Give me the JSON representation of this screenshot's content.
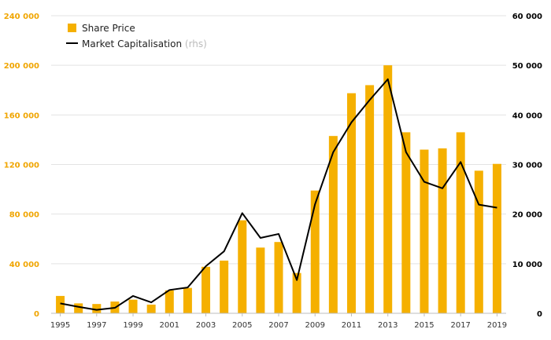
{
  "chart_data": {
    "type": "bar",
    "categories": [
      "1995",
      "1996",
      "1997",
      "1998",
      "1999",
      "2000",
      "2001",
      "2002",
      "2003",
      "2004",
      "2005",
      "2006",
      "2007",
      "2008",
      "2009",
      "2010",
      "2011",
      "2012",
      "2013",
      "2014",
      "2015",
      "2016",
      "2017",
      "2018",
      "2019"
    ],
    "x_tick_labels": [
      "1995",
      "1997",
      "1999",
      "2001",
      "2003",
      "2005",
      "2007",
      "2009",
      "2011",
      "2013",
      "2015",
      "2017",
      "2019"
    ],
    "series": [
      {
        "name": "Share Price",
        "type": "bar",
        "axis": "left",
        "color": "#f5b000",
        "values": [
          14000,
          8000,
          7500,
          9500,
          11000,
          7000,
          18500,
          20500,
          37500,
          42500,
          75000,
          53000,
          57500,
          32500,
          99000,
          143000,
          177500,
          184000,
          200000,
          146000,
          132000,
          133000,
          146000,
          115000,
          120500
        ]
      },
      {
        "name": "Market Capitalisation",
        "name_suffix": "(rhs)",
        "type": "line",
        "axis": "right",
        "color": "#000000",
        "values": [
          2000,
          1300,
          700,
          1100,
          3500,
          2200,
          4700,
          5200,
          9500,
          12500,
          20200,
          15200,
          16000,
          6700,
          22000,
          32500,
          38500,
          43000,
          47200,
          32500,
          26500,
          25200,
          30500,
          21900,
          21300
        ]
      }
    ],
    "y_left": {
      "min": 0,
      "max": 240000,
      "ticks": [
        "0",
        "40 000",
        "80 000",
        "120 000",
        "160 000",
        "200 000",
        "240 000"
      ],
      "color": "#f0a500"
    },
    "y_right": {
      "min": 0,
      "max": 60000,
      "ticks": [
        "0",
        "10 000",
        "20 000",
        "30 000",
        "40 000",
        "50 000",
        "60 000"
      ],
      "color": "#000000"
    },
    "grid": true,
    "legend_position": "top-left"
  }
}
